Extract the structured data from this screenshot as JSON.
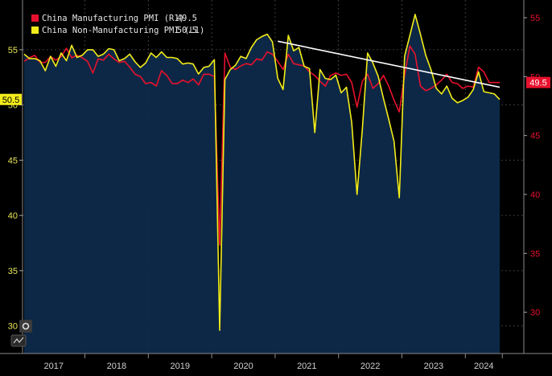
{
  "chart_data": {
    "type": "line",
    "title": "",
    "legend": {
      "placement": "top-left",
      "entries": [
        {
          "name": "China Manufacturing PMI (R1)",
          "value": "49.5",
          "color": "#e8112d"
        },
        {
          "name": "China Non-Manufacturing PMI (L1)",
          "value": "50.5",
          "color": "#f2ec1a"
        }
      ]
    },
    "x_axis": {
      "labels": [
        "2017",
        "2018",
        "2019",
        "2020",
        "2021",
        "2022",
        "2023",
        "2024"
      ]
    },
    "left_axis": {
      "min": 27.5,
      "max": 59.5,
      "ticks": [
        30,
        35,
        40,
        45,
        50,
        55
      ]
    },
    "right_axis": {
      "min": 26.5,
      "max": 56.5,
      "ticks": [
        30,
        35,
        40,
        45,
        50,
        55
      ]
    },
    "last_value_badges": {
      "left": "50.5",
      "right": "49.5"
    },
    "series": [
      {
        "name": "China Non-Manufacturing PMI (L1)",
        "axis": "left",
        "color": "#f2ec1a",
        "values": [
          54.6,
          54.2,
          54.2,
          54.0,
          53.1,
          54.4,
          53.5,
          54.7,
          54.0,
          55.4,
          54.3,
          54.5,
          55.0,
          55.0,
          54.4,
          54.6,
          55.1,
          55.0,
          54.0,
          54.2,
          54.6,
          53.9,
          53.4,
          53.8,
          54.7,
          54.3,
          54.8,
          54.3,
          54.3,
          54.2,
          53.7,
          53.8,
          53.7,
          52.8,
          53.4,
          53.5,
          54.1,
          29.6,
          52.3,
          53.2,
          53.6,
          54.4,
          54.2,
          55.2,
          55.9,
          56.2,
          56.4,
          55.7,
          52.4,
          51.4,
          56.3,
          54.9,
          55.2,
          53.5,
          53.3,
          47.5,
          53.2,
          52.4,
          52.3,
          52.7,
          51.1,
          51.6,
          48.4,
          41.9,
          47.8,
          54.7,
          53.8,
          52.6,
          50.6,
          48.7,
          46.7,
          41.6,
          54.4,
          56.3,
          58.2,
          56.4,
          54.5,
          53.2,
          51.5,
          51.0,
          51.7,
          50.6,
          50.2,
          50.4,
          50.7,
          51.4,
          53.0,
          51.2,
          51.1,
          51.0,
          50.5
        ]
      },
      {
        "name": "China Manufacturing PMI (R1)",
        "axis": "right",
        "color": "#e8112d",
        "values": [
          51.3,
          51.6,
          51.8,
          51.2,
          51.2,
          51.7,
          51.4,
          51.7,
          52.4,
          51.6,
          51.8,
          51.6,
          51.3,
          50.3,
          51.5,
          51.4,
          51.9,
          51.5,
          51.2,
          51.3,
          50.8,
          50.2,
          50.0,
          49.4,
          49.5,
          49.2,
          50.5,
          50.1,
          49.4,
          49.4,
          49.7,
          49.5,
          49.8,
          49.3,
          50.2,
          50.2,
          50.0,
          35.7,
          52.0,
          50.8,
          50.6,
          50.9,
          51.1,
          51.0,
          51.5,
          51.4,
          52.1,
          51.9,
          51.3,
          50.6,
          51.9,
          51.1,
          51.0,
          50.9,
          50.4,
          50.1,
          49.6,
          49.2,
          50.1,
          50.3,
          50.1,
          50.2,
          49.5,
          47.4,
          49.6,
          50.2,
          49.0,
          49.4,
          50.1,
          49.2,
          48.0,
          47.0,
          50.1,
          52.6,
          51.9,
          49.2,
          48.8,
          49.0,
          49.3,
          49.7,
          50.2,
          49.5,
          49.4,
          49.0,
          49.2,
          49.1,
          50.8,
          50.4,
          49.5,
          49.5,
          49.5
        ]
      }
    ],
    "annotations": [
      {
        "type": "trendline",
        "color": "#ffffff",
        "from": {
          "x_index": 48,
          "y_right": 53.0
        },
        "to": {
          "x_index": 90,
          "y_right": 49.1
        }
      }
    ]
  }
}
